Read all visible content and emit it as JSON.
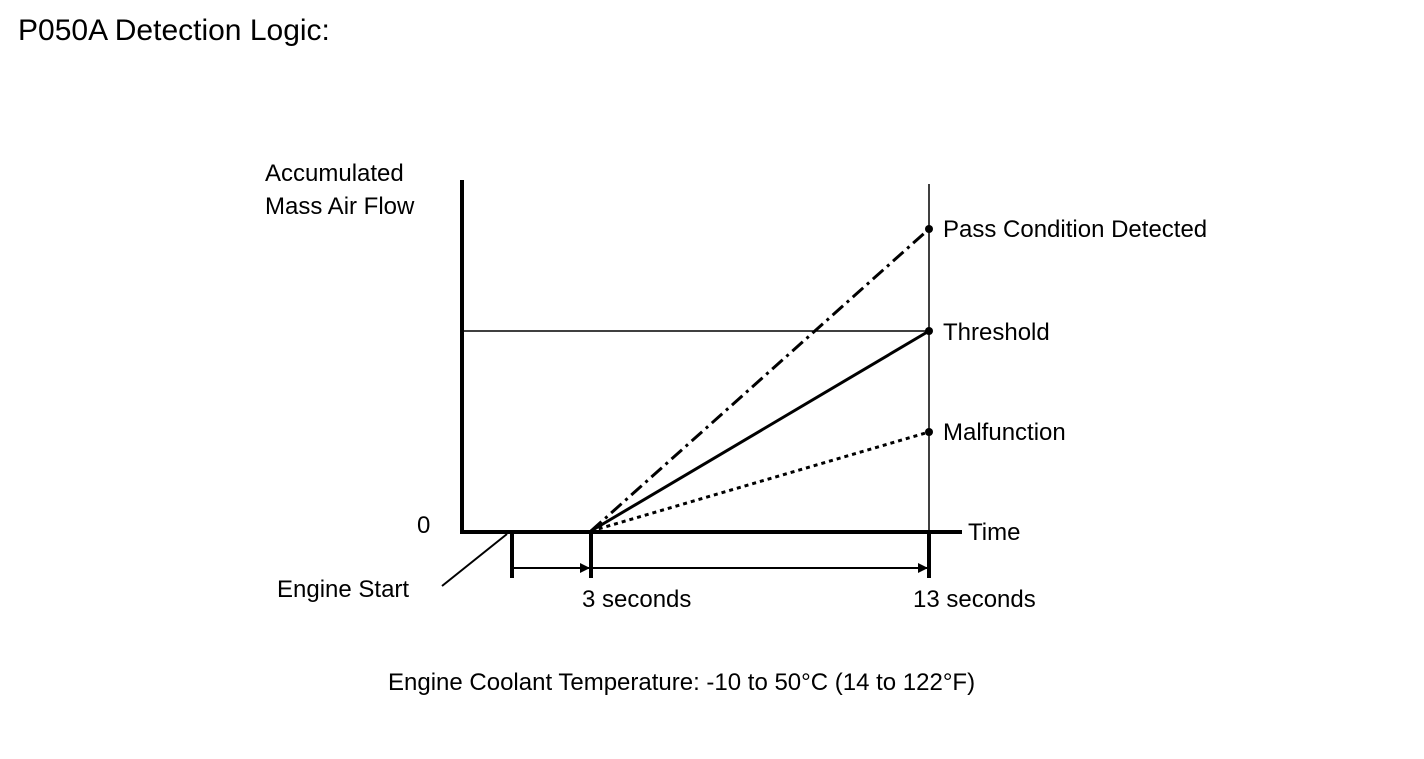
{
  "page": {
    "title": "P050A Detection Logic:",
    "caption": "Engine Coolant Temperature: -10 to 50°C (14 to 122°F)"
  },
  "diagram": {
    "y_axis_label_line1": "Accumulated",
    "y_axis_label_line2": "Mass Air Flow",
    "x_axis_label": "Time",
    "origin_label": "0",
    "engine_start_label": "Engine Start",
    "tick_3s_label": "3 seconds",
    "tick_13s_label": "13 seconds",
    "series": [
      {
        "id": "pass",
        "label": "Pass Condition Detected",
        "style": "dash-dot"
      },
      {
        "id": "threshold",
        "label": "Threshold",
        "style": "solid"
      },
      {
        "id": "malfunction",
        "label": "Malfunction",
        "style": "dotted"
      }
    ]
  }
}
